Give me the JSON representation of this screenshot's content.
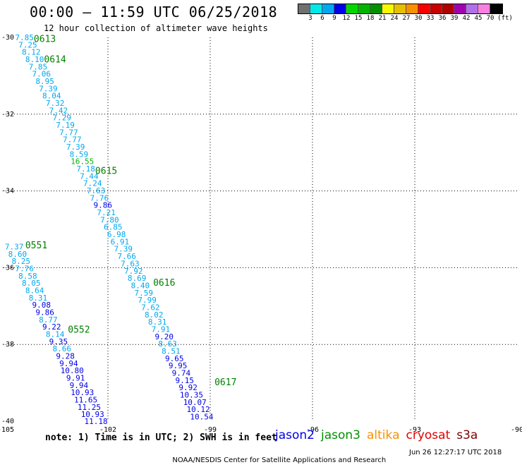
{
  "header": {
    "title": "00:00 — 11:59 UTC 06/25/2018",
    "subtitle": "12 hour collection of altimeter wave heights"
  },
  "colorbar": {
    "colors": [
      "#707070",
      "#00e8e8",
      "#00a8f0",
      "#0000e8",
      "#00d800",
      "#00b400",
      "#009000",
      "#f8f800",
      "#e4c000",
      "#f89000",
      "#f80000",
      "#c80000",
      "#b00000",
      "#a000b0",
      "#b070e8",
      "#f880e0",
      "#000000"
    ],
    "tick_labels": [
      "3",
      "6",
      "9",
      "12",
      "15",
      "18",
      "21",
      "24",
      "27",
      "30",
      "33",
      "36",
      "39",
      "42",
      "45",
      "70"
    ],
    "unit_label": "(ft)"
  },
  "axes": {
    "x_tick_labels": [
      "-105",
      "-102",
      "-99",
      "-96",
      "-93",
      "-90"
    ],
    "y_tick_labels": [
      "-30",
      "-32",
      "-34",
      "-36",
      "-38",
      "-40"
    ],
    "grid": "dotted",
    "lon_range": [
      -105,
      -90
    ],
    "lat_range": [
      -40,
      -30
    ]
  },
  "tracks": [
    {
      "labels": [
        {
          "text": "0613",
          "lon": -103.85,
          "lat": -30.05
        },
        {
          "text": "0614",
          "lon": -103.55,
          "lat": -30.58
        }
      ],
      "points": [
        {
          "lon": -104.45,
          "lat": -30.0,
          "value": "7.85",
          "color": "#00a8f0"
        },
        {
          "lon": -104.35,
          "lat": -30.19,
          "value": "7.25",
          "color": "#00a8f0"
        },
        {
          "lon": -104.25,
          "lat": -30.38,
          "value": "8.12",
          "color": "#00a8f0"
        },
        {
          "lon": -104.15,
          "lat": -30.57,
          "value": "8.10",
          "color": "#00a8f0"
        },
        {
          "lon": -104.05,
          "lat": -30.76,
          "value": "7.85",
          "color": "#00a8f0"
        },
        {
          "lon": -103.95,
          "lat": -30.95,
          "value": "7.06",
          "color": "#00a8f0"
        },
        {
          "lon": -103.85,
          "lat": -31.14,
          "value": "8.95",
          "color": "#00a8f0"
        },
        {
          "lon": -103.75,
          "lat": -31.33,
          "value": "7.39",
          "color": "#00a8f0"
        },
        {
          "lon": -103.65,
          "lat": -31.52,
          "value": "8.04",
          "color": "#00a8f0"
        },
        {
          "lon": -103.55,
          "lat": -31.71,
          "value": "7.32",
          "color": "#00a8f0"
        },
        {
          "lon": -103.45,
          "lat": -31.9,
          "value": "7.42",
          "color": "#00a8f0"
        },
        {
          "lon": -103.35,
          "lat": -32.09,
          "value": "7.29",
          "color": "#00a8f0"
        },
        {
          "lon": -103.25,
          "lat": -32.28,
          "value": "7.19",
          "color": "#00a8f0"
        },
        {
          "lon": -103.15,
          "lat": -32.47,
          "value": "7.77",
          "color": "#00a8f0"
        },
        {
          "lon": -103.05,
          "lat": -32.66,
          "value": "7.77",
          "color": "#00a8f0"
        },
        {
          "lon": -102.95,
          "lat": -32.85,
          "value": "7.39",
          "color": "#00a8f0"
        },
        {
          "lon": -102.85,
          "lat": -33.04,
          "value": "8.59",
          "color": "#00a8f0"
        }
      ]
    },
    {
      "labels": [
        {
          "text": "0615",
          "lon": -102.05,
          "lat": -33.48
        },
        {
          "text": "0616",
          "lon": -100.35,
          "lat": -36.4
        }
      ],
      "points": [
        {
          "lon": -102.75,
          "lat": -33.23,
          "value": "16.55",
          "color": "#00b400"
        },
        {
          "lon": -102.65,
          "lat": -33.42,
          "value": "7.18",
          "color": "#00a8f0"
        },
        {
          "lon": -102.55,
          "lat": -33.61,
          "value": "7.44",
          "color": "#00a8f0"
        },
        {
          "lon": -102.45,
          "lat": -33.8,
          "value": "7.24",
          "color": "#00a8f0"
        },
        {
          "lon": -102.35,
          "lat": -33.99,
          "value": "7.63",
          "color": "#00a8f0"
        },
        {
          "lon": -102.25,
          "lat": -34.18,
          "value": "7.76",
          "color": "#00a8f0"
        },
        {
          "lon": -102.15,
          "lat": -34.37,
          "value": "9.86",
          "color": "#0000e8"
        },
        {
          "lon": -102.05,
          "lat": -34.56,
          "value": "7.21",
          "color": "#00a8f0"
        },
        {
          "lon": -101.95,
          "lat": -34.75,
          "value": "7.80",
          "color": "#00a8f0"
        },
        {
          "lon": -101.85,
          "lat": -34.94,
          "value": "6.85",
          "color": "#00a8f0"
        },
        {
          "lon": -101.75,
          "lat": -35.13,
          "value": "6.98",
          "color": "#00a8f0"
        },
        {
          "lon": -101.65,
          "lat": -35.32,
          "value": "6.91",
          "color": "#00a8f0"
        },
        {
          "lon": -101.55,
          "lat": -35.51,
          "value": "7.39",
          "color": "#00a8f0"
        },
        {
          "lon": -101.45,
          "lat": -35.7,
          "value": "7.66",
          "color": "#00a8f0"
        },
        {
          "lon": -101.35,
          "lat": -35.89,
          "value": "7.63",
          "color": "#00a8f0"
        },
        {
          "lon": -101.25,
          "lat": -36.08,
          "value": "7.92",
          "color": "#00a8f0"
        },
        {
          "lon": -101.15,
          "lat": -36.27,
          "value": "8.69",
          "color": "#00a8f0"
        },
        {
          "lon": -101.05,
          "lat": -36.46,
          "value": "8.40",
          "color": "#00a8f0"
        },
        {
          "lon": -100.95,
          "lat": -36.65,
          "value": "7.59",
          "color": "#00a8f0"
        },
        {
          "lon": -100.85,
          "lat": -36.84,
          "value": "7.99",
          "color": "#00a8f0"
        },
        {
          "lon": -100.75,
          "lat": -37.03,
          "value": "7.62",
          "color": "#00a8f0"
        },
        {
          "lon": -100.65,
          "lat": -37.22,
          "value": "8.02",
          "color": "#00a8f0"
        },
        {
          "lon": -100.55,
          "lat": -37.41,
          "value": "8.31",
          "color": "#00a8f0"
        },
        {
          "lon": -100.45,
          "lat": -37.6,
          "value": "7.91",
          "color": "#00a8f0"
        },
        {
          "lon": -100.35,
          "lat": -37.79,
          "value": "9.20",
          "color": "#0000e8"
        },
        {
          "lon": -100.25,
          "lat": -37.98,
          "value": "8.63",
          "color": "#00a8f0"
        },
        {
          "lon": -100.15,
          "lat": -38.17,
          "value": "8.51",
          "color": "#00a8f0"
        },
        {
          "lon": -100.05,
          "lat": -38.36,
          "value": "9.65",
          "color": "#0000e8"
        },
        {
          "lon": -99.95,
          "lat": -38.55,
          "value": "9.95",
          "color": "#0000e8"
        },
        {
          "lon": -99.85,
          "lat": -38.74,
          "value": "9.74",
          "color": "#0000e8"
        }
      ]
    },
    {
      "labels": [
        {
          "text": "0617",
          "lon": -98.55,
          "lat": -38.99
        }
      ],
      "points": [
        {
          "lon": -99.75,
          "lat": -38.93,
          "value": "9.15",
          "color": "#0000e8"
        },
        {
          "lon": -99.65,
          "lat": -39.12,
          "value": "9.92",
          "color": "#0000e8"
        },
        {
          "lon": -99.55,
          "lat": -39.31,
          "value": "10.35",
          "color": "#0000e8"
        },
        {
          "lon": -99.45,
          "lat": -39.5,
          "value": "10.07",
          "color": "#0000e8"
        },
        {
          "lon": -99.35,
          "lat": -39.69,
          "value": "10.12",
          "color": "#0000e8"
        },
        {
          "lon": -99.25,
          "lat": -39.88,
          "value": "10.54",
          "color": "#0000e8"
        }
      ]
    },
    {
      "labels": [
        {
          "text": "0551",
          "lon": -104.1,
          "lat": -35.42
        },
        {
          "text": "0552",
          "lon": -102.85,
          "lat": -37.62
        }
      ],
      "points": [
        {
          "lon": -104.75,
          "lat": -35.45,
          "value": "7.37",
          "color": "#00a8f0"
        },
        {
          "lon": -104.65,
          "lat": -35.64,
          "value": "8.60",
          "color": "#00a8f0"
        },
        {
          "lon": -104.55,
          "lat": -35.83,
          "value": "8.25",
          "color": "#00a8f0"
        },
        {
          "lon": -104.45,
          "lat": -36.02,
          "value": "7.76",
          "color": "#00a8f0"
        },
        {
          "lon": -104.35,
          "lat": -36.21,
          "value": "8.58",
          "color": "#00a8f0"
        },
        {
          "lon": -104.25,
          "lat": -36.4,
          "value": "8.05",
          "color": "#00a8f0"
        },
        {
          "lon": -104.15,
          "lat": -36.59,
          "value": "8.64",
          "color": "#00a8f0"
        },
        {
          "lon": -104.05,
          "lat": -36.78,
          "value": "8.31",
          "color": "#00a8f0"
        },
        {
          "lon": -103.95,
          "lat": -36.97,
          "value": "9.08",
          "color": "#0000e8"
        },
        {
          "lon": -103.85,
          "lat": -37.16,
          "value": "9.86",
          "color": "#0000e8"
        },
        {
          "lon": -103.75,
          "lat": -37.35,
          "value": "8.77",
          "color": "#00a8f0"
        },
        {
          "lon": -103.65,
          "lat": -37.54,
          "value": "9.22",
          "color": "#0000e8"
        },
        {
          "lon": -103.55,
          "lat": -37.73,
          "value": "8.14",
          "color": "#00a8f0"
        },
        {
          "lon": -103.45,
          "lat": -37.92,
          "value": "9.35",
          "color": "#0000e8"
        },
        {
          "lon": -103.35,
          "lat": -38.11,
          "value": "8.66",
          "color": "#00a8f0"
        },
        {
          "lon": -103.25,
          "lat": -38.3,
          "value": "9.28",
          "color": "#0000e8"
        },
        {
          "lon": -103.15,
          "lat": -38.49,
          "value": "9.94",
          "color": "#0000e8"
        },
        {
          "lon": -103.05,
          "lat": -38.68,
          "value": "10.80",
          "color": "#0000e8"
        },
        {
          "lon": -102.95,
          "lat": -38.87,
          "value": "9.91",
          "color": "#0000e8"
        },
        {
          "lon": -102.85,
          "lat": -39.06,
          "value": "9.94",
          "color": "#0000e8"
        },
        {
          "lon": -102.75,
          "lat": -39.25,
          "value": "10.93",
          "color": "#0000e8"
        },
        {
          "lon": -102.65,
          "lat": -39.44,
          "value": "11.65",
          "color": "#0000e8"
        },
        {
          "lon": -102.55,
          "lat": -39.63,
          "value": "11.25",
          "color": "#0000e8"
        },
        {
          "lon": -102.45,
          "lat": -39.82,
          "value": "10.93",
          "color": "#0000e8"
        },
        {
          "lon": -102.35,
          "lat": -40.0,
          "value": "11.18",
          "color": "#0000e8"
        }
      ]
    }
  ],
  "track_label_color": "#008000",
  "note": "note: 1) Time is in UTC; 2) SWH is in feet",
  "legend": [
    {
      "name": "jason2",
      "color": "#0000e8"
    },
    {
      "name": "jason3",
      "color": "#009000"
    },
    {
      "name": "altika",
      "color": "#f89000"
    },
    {
      "name": "cryosat",
      "color": "#e00000"
    },
    {
      "name": "s3a",
      "color": "#800000"
    }
  ],
  "footer": {
    "credit": "NOAA/NESDIS Center for Satellite Applications and Research",
    "timestamp": "Jun 26 12:27:17 UTC 2018"
  }
}
